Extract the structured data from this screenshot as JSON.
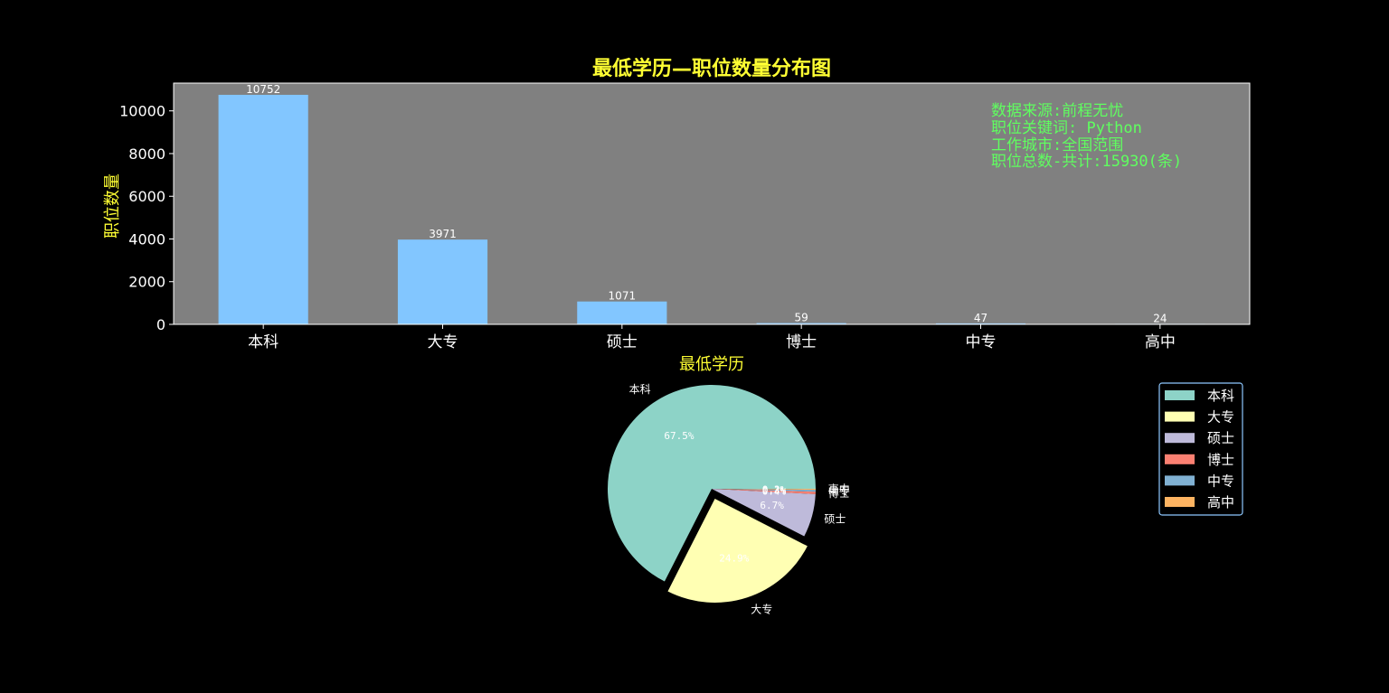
{
  "chart_data": [
    {
      "type": "bar",
      "title": "最低学历—职位数量分布图",
      "xlabel": "最低学历",
      "ylabel": "职位数量",
      "categories": [
        "本科",
        "大专",
        "硕士",
        "博士",
        "中专",
        "高中"
      ],
      "values": [
        10752,
        3971,
        1071,
        59,
        47,
        24
      ],
      "ylim": [
        0,
        11300
      ],
      "yticks": [
        "0",
        "2000",
        "4000",
        "6000",
        "8000",
        "10000"
      ],
      "bar_color": "#82c6ff",
      "plot_background": "#808080",
      "grid": false,
      "annotation": {
        "lines": [
          "数据来源:前程无忧",
          "职位关键词: Python",
          "工作城市:全国范围",
          "职位总数-共计:15930(条)"
        ],
        "color": "#5fff5f"
      },
      "title_color": "#ffff33",
      "label_color": "#ffff33"
    },
    {
      "type": "pie",
      "labels": [
        "本科",
        "大专",
        "硕士",
        "博士",
        "中专",
        "高中"
      ],
      "values": [
        10752,
        3971,
        1071,
        59,
        47,
        24
      ],
      "percent_labels": [
        "67.5%",
        "24.9%",
        "6.7%",
        "0.4%",
        "0.3%",
        "0.2%"
      ],
      "colors": [
        "#8dd3c7",
        "#ffffb3",
        "#bebada",
        "#fb8072",
        "#80b1d3",
        "#fdb462"
      ],
      "exploded": "大专",
      "legend": {
        "placement": "right",
        "entries": [
          "本科",
          "大专",
          "硕士",
          "博士",
          "中专",
          "高中"
        ]
      }
    }
  ]
}
